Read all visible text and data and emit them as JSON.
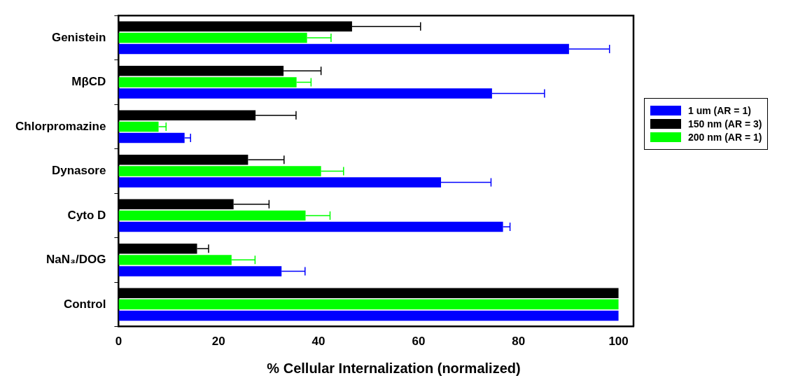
{
  "chart_data": {
    "type": "bar",
    "orientation": "horizontal",
    "xlabel": "% Cellular Internalization (normalized)",
    "categories": [
      "Genistein",
      "MβCD",
      "Chlorpromazine",
      "Dynasore",
      "Cyto D",
      "NaN₃/DOG",
      "Control"
    ],
    "series": [
      {
        "name": "1 um (AR = 1)",
        "color": "#0000ff",
        "values": [
          90.1,
          74.7,
          13.2,
          64.5,
          76.9,
          32.6,
          100
        ],
        "errors": [
          8.1,
          10.5,
          1.2,
          10,
          1.4,
          4.7,
          null
        ]
      },
      {
        "name": "150 nm (AR = 3)",
        "color": "#000000",
        "values": [
          46.7,
          33.0,
          27.4,
          25.9,
          23.0,
          15.7,
          100
        ],
        "errors": [
          13.7,
          7.5,
          8.1,
          7.2,
          7.1,
          2.3,
          null
        ]
      },
      {
        "name": "200 nm (AR = 1)",
        "color": "#00ff00",
        "values": [
          37.7,
          35.6,
          8.0,
          40.5,
          37.4,
          22.6,
          100
        ],
        "errors": [
          4.8,
          2.9,
          1.5,
          4.5,
          4.9,
          4.7,
          null
        ]
      }
    ],
    "xlim": [
      0,
      103
    ],
    "xticks": [
      0,
      20,
      40,
      60,
      80,
      100
    ],
    "grid": false,
    "legend": "right"
  }
}
